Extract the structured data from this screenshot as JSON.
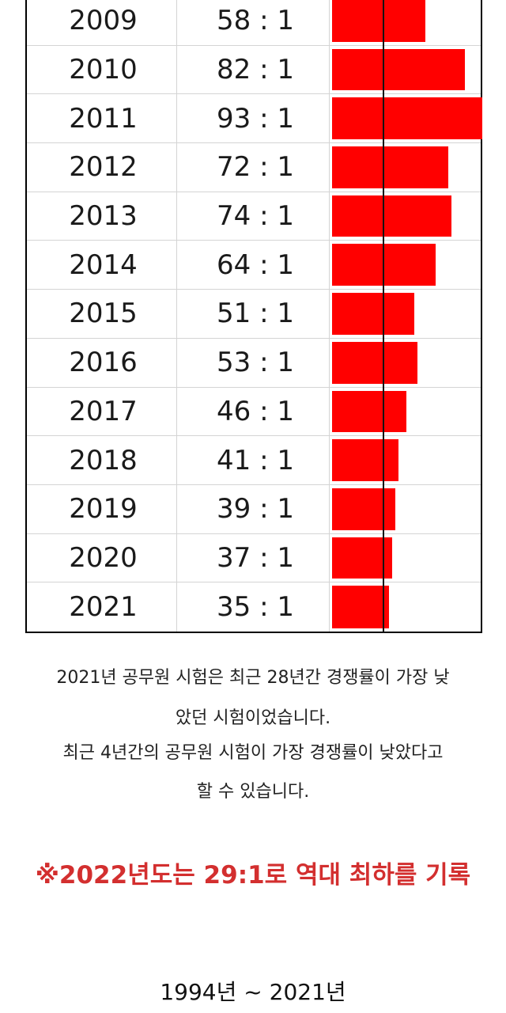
{
  "chart_data": {
    "type": "table",
    "rows": [
      {
        "year": "2009",
        "ratio": "58 : 1",
        "value": 58
      },
      {
        "year": "2010",
        "ratio": "82 : 1",
        "value": 82
      },
      {
        "year": "2011",
        "ratio": "93 : 1",
        "value": 93
      },
      {
        "year": "2012",
        "ratio": "72 : 1",
        "value": 72
      },
      {
        "year": "2013",
        "ratio": "74 : 1",
        "value": 74
      },
      {
        "year": "2014",
        "ratio": "64 : 1",
        "value": 64
      },
      {
        "year": "2015",
        "ratio": "51 : 1",
        "value": 51
      },
      {
        "year": "2016",
        "ratio": "53 : 1",
        "value": 53
      },
      {
        "year": "2017",
        "ratio": "46 : 1",
        "value": 46
      },
      {
        "year": "2018",
        "ratio": "41 : 1",
        "value": 41
      },
      {
        "year": "2019",
        "ratio": "39 : 1",
        "value": 39
      },
      {
        "year": "2020",
        "ratio": "37 : 1",
        "value": 37
      },
      {
        "year": "2021",
        "ratio": "35 : 1",
        "value": 35
      }
    ],
    "bar_color": "#ff0000",
    "bar_max": 93
  },
  "text": {
    "line1": "2021년 공무원 시험은 최근 28년간 경쟁률이 가장 낮",
    "line2": "았던 시험이었습니다.",
    "line3": "최근 4년간의 공무원 시험이 가장 경쟁률이 낮았다고",
    "line4": "할 수 있습니다.",
    "note": "※2022년도는 29:1로 역대 최하를 기록",
    "footer": "1994년 ~ 2021년"
  },
  "colors": {
    "note": "#d32f2f",
    "bar": "#ff0000"
  }
}
